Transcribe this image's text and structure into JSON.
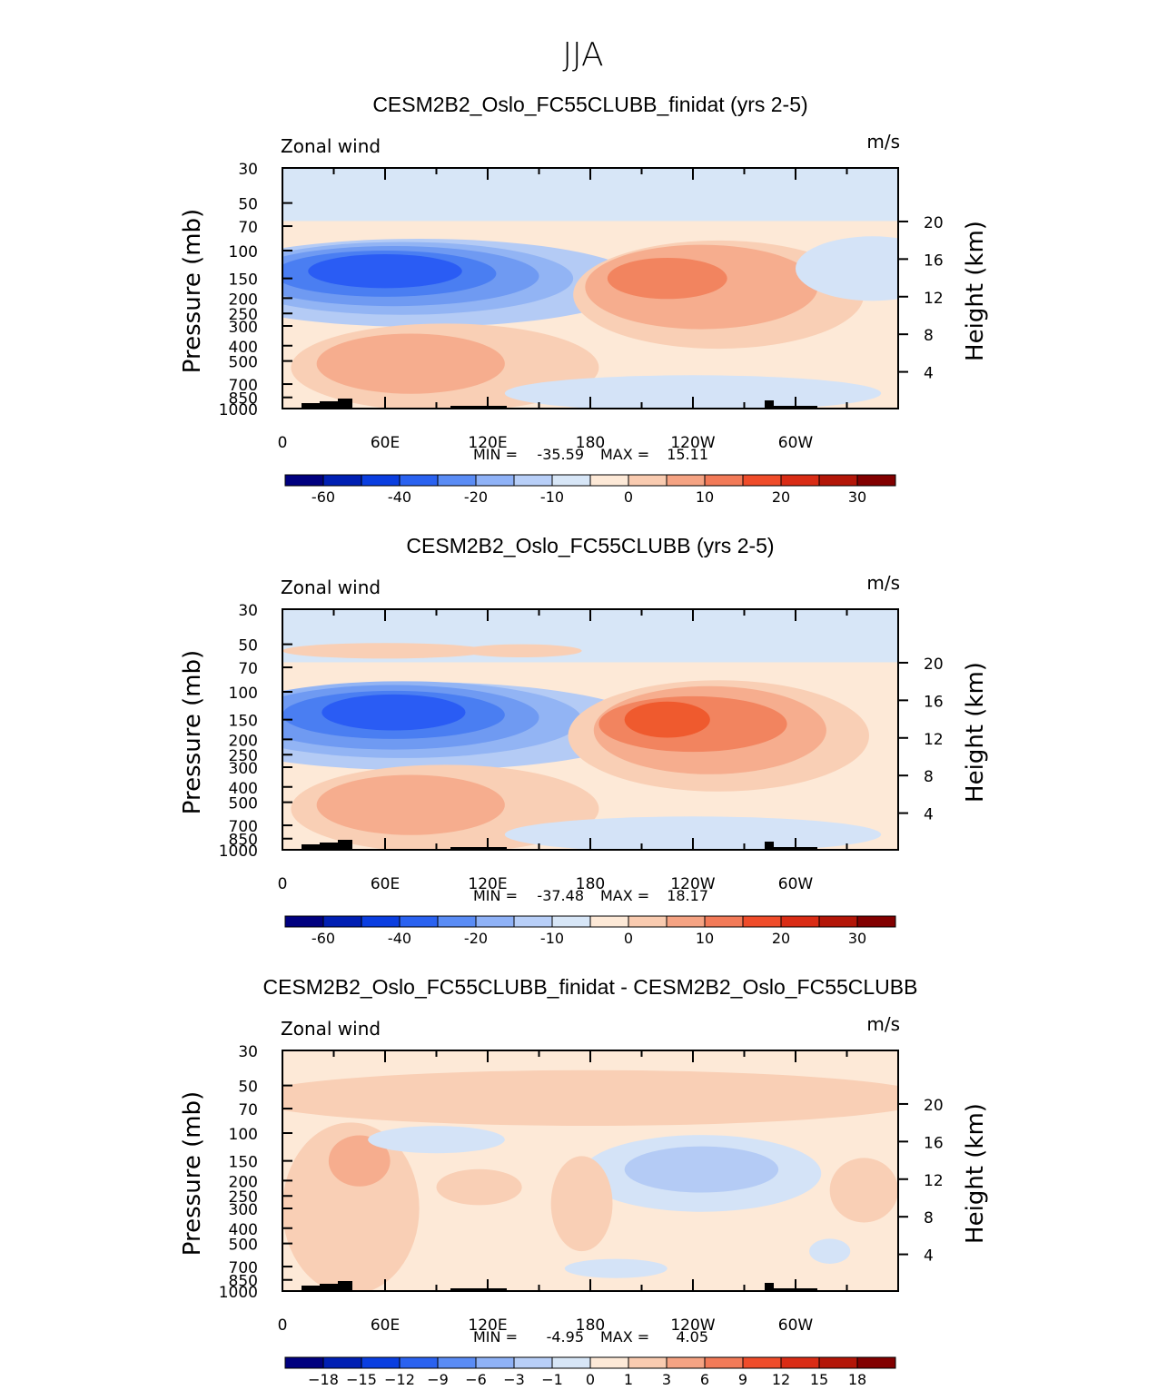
{
  "figure_title": "JJA",
  "chart_data": [
    {
      "type": "heatmap",
      "title": "CESM2B2_Oslo_FC55CLUBB_finidat (yrs 2-5)",
      "left_label": "Zonal wind",
      "right_label": "m/s",
      "ylabel": "Pressure (mb)",
      "ylabel_right": "Height (km)",
      "x_ticks": [
        "0",
        "60E",
        "120E",
        "180",
        "120W",
        "60W"
      ],
      "y_ticks": [
        "30",
        "50",
        "70",
        "100",
        "150",
        "200",
        "250",
        "300",
        "400",
        "500",
        "700",
        "850",
        "1000"
      ],
      "y_ticks_right": [
        "20",
        "16",
        "12",
        "8",
        "4"
      ],
      "stats": {
        "min_label": "MIN =",
        "min": "-35.59",
        "max_label": "MAX =",
        "max": "15.11"
      },
      "colorbar_labels": [
        "-60",
        "-40",
        "-20",
        "-10",
        "0",
        "10",
        "20",
        "30"
      ],
      "colorbar_label_slots": [
        1,
        3,
        5,
        7,
        9,
        11,
        13,
        15
      ],
      "features": [
        {
          "level": -2,
          "lon": 80,
          "p": 160,
          "rx": 130,
          "ry": 1.9
        },
        {
          "level": -3,
          "lon": 70,
          "p": 150,
          "rx": 100,
          "ry": 1.7
        },
        {
          "level": -4,
          "lon": 65,
          "p": 145,
          "rx": 85,
          "ry": 1.55
        },
        {
          "level": -5,
          "lon": 60,
          "p": 140,
          "rx": 65,
          "ry": 1.4
        },
        {
          "level": -6,
          "lon": 60,
          "p": 135,
          "rx": 45,
          "ry": 1.28
        },
        {
          "level": 1,
          "lon": 255,
          "p": 190,
          "rx": 85,
          "ry": 2.2
        },
        {
          "level": 2,
          "lon": 245,
          "p": 170,
          "rx": 68,
          "ry": 1.85
        },
        {
          "level": 3,
          "lon": 225,
          "p": 150,
          "rx": 35,
          "ry": 1.35
        },
        {
          "level": 1,
          "lon": 95,
          "p": 550,
          "rx": 90,
          "ry": 1.9
        },
        {
          "level": 2,
          "lon": 75,
          "p": 520,
          "rx": 55,
          "ry": 1.55
        },
        {
          "level": -1,
          "lon": 240,
          "p": 800,
          "rx": 110,
          "ry": 1.3
        },
        {
          "level": -1,
          "lon": 345,
          "p": 130,
          "rx": 45,
          "ry": 1.6
        }
      ]
    },
    {
      "type": "heatmap",
      "title": "CESM2B2_Oslo_FC55CLUBB (yrs 2-5)",
      "left_label": "Zonal wind",
      "right_label": "m/s",
      "ylabel": "Pressure (mb)",
      "ylabel_right": "Height (km)",
      "x_ticks": [
        "0",
        "60E",
        "120E",
        "180",
        "120W",
        "60W"
      ],
      "y_ticks": [
        "30",
        "50",
        "70",
        "100",
        "150",
        "200",
        "250",
        "300",
        "400",
        "500",
        "700",
        "850",
        "1000"
      ],
      "y_ticks_right": [
        "20",
        "16",
        "12",
        "8",
        "4"
      ],
      "stats": {
        "min_label": "MIN =",
        "min": "-37.48",
        "max_label": "MAX =",
        "max": "18.17"
      },
      "colorbar_labels": [
        "-60",
        "-40",
        "-20",
        "-10",
        "0",
        "10",
        "20",
        "30"
      ],
      "colorbar_label_slots": [
        1,
        3,
        5,
        7,
        9,
        11,
        13,
        15
      ],
      "features": [
        {
          "level": -2,
          "lon": 80,
          "p": 165,
          "rx": 135,
          "ry": 1.9
        },
        {
          "level": -3,
          "lon": 70,
          "p": 150,
          "rx": 105,
          "ry": 1.75
        },
        {
          "level": -4,
          "lon": 65,
          "p": 145,
          "rx": 85,
          "ry": 1.6
        },
        {
          "level": -5,
          "lon": 65,
          "p": 140,
          "rx": 65,
          "ry": 1.42
        },
        {
          "level": -6,
          "lon": 65,
          "p": 135,
          "rx": 42,
          "ry": 1.3
        },
        {
          "level": 1,
          "lon": 255,
          "p": 190,
          "rx": 88,
          "ry": 2.25
        },
        {
          "level": 2,
          "lon": 250,
          "p": 175,
          "rx": 68,
          "ry": 1.9
        },
        {
          "level": 3,
          "lon": 240,
          "p": 160,
          "rx": 55,
          "ry": 1.5
        },
        {
          "level": 4,
          "lon": 225,
          "p": 150,
          "rx": 25,
          "ry": 1.3
        },
        {
          "level": 1,
          "lon": 95,
          "p": 550,
          "rx": 90,
          "ry": 1.9
        },
        {
          "level": 2,
          "lon": 75,
          "p": 520,
          "rx": 55,
          "ry": 1.55
        },
        {
          "level": -1,
          "lon": 240,
          "p": 800,
          "rx": 110,
          "ry": 1.3
        },
        {
          "level": 1,
          "lon": 60,
          "p": 55,
          "rx": 60,
          "ry": 1.12
        },
        {
          "level": 1,
          "lon": 140,
          "p": 55,
          "rx": 35,
          "ry": 1.1
        }
      ]
    },
    {
      "type": "heatmap",
      "title": "CESM2B2_Oslo_FC55CLUBB_finidat - CESM2B2_Oslo_FC55CLUBB",
      "left_label": "Zonal wind",
      "right_label": "m/s",
      "ylabel": "Pressure (mb)",
      "ylabel_right": "Height (km)",
      "x_ticks": [
        "0",
        "60E",
        "120E",
        "180",
        "120W",
        "60W"
      ],
      "y_ticks": [
        "30",
        "50",
        "70",
        "100",
        "150",
        "200",
        "250",
        "300",
        "400",
        "500",
        "700",
        "850",
        "1000"
      ],
      "y_ticks_right": [
        "20",
        "16",
        "12",
        "8",
        "4"
      ],
      "stats": {
        "min_label": "MIN =",
        "min": "-4.95",
        "max_label": "MAX =",
        "max": "4.05"
      },
      "colorbar_labels": [
        "−18",
        "−15",
        "−12",
        "−9",
        "−6",
        "−3",
        "−1",
        "0",
        "1",
        "3",
        "6",
        "9",
        "12",
        "15",
        "18"
      ],
      "colorbar_label_slots": [
        1,
        2,
        3,
        4,
        5,
        6,
        7,
        8,
        9,
        10,
        11,
        12,
        13,
        14,
        15
      ],
      "background_level": 0,
      "features": [
        {
          "level": 1,
          "lon": 180,
          "p": 60,
          "rx": 200,
          "ry": 1.5
        },
        {
          "level": 1,
          "lon": 40,
          "p": 300,
          "rx": 40,
          "ry": 3.5
        },
        {
          "level": 2,
          "lon": 45,
          "p": 150,
          "rx": 18,
          "ry": 1.45
        },
        {
          "level": -1,
          "lon": 245,
          "p": 180,
          "rx": 70,
          "ry": 1.75
        },
        {
          "level": -2,
          "lon": 245,
          "p": 170,
          "rx": 45,
          "ry": 1.4
        },
        {
          "level": -1,
          "lon": 90,
          "p": 110,
          "rx": 40,
          "ry": 1.22
        },
        {
          "level": 1,
          "lon": 175,
          "p": 280,
          "rx": 18,
          "ry": 2.0
        },
        {
          "level": 1,
          "lon": 115,
          "p": 220,
          "rx": 25,
          "ry": 1.3
        },
        {
          "level": 1,
          "lon": 340,
          "p": 230,
          "rx": 20,
          "ry": 1.6
        },
        {
          "level": -1,
          "lon": 320,
          "p": 560,
          "rx": 12,
          "ry": 1.2
        },
        {
          "level": -1,
          "lon": 195,
          "p": 720,
          "rx": 30,
          "ry": 1.15
        }
      ]
    }
  ],
  "colors": {
    "colorbar": [
      "#00007f",
      "#001fb3",
      "#0a3ee0",
      "#2a62f0",
      "#5a8cf5",
      "#8fb2f7",
      "#b8cff8",
      "#d7e6f7",
      "#fde9d7",
      "#f9cbb0",
      "#f5a383",
      "#f27a58",
      "#ef4c2a",
      "#d92c15",
      "#b31608",
      "#820000"
    ],
    "contour_levels": {
      "-6": "#2a5cf4",
      "-5": "#4a7ef2",
      "-4": "#6f9af2",
      "-3": "#92b4f4",
      "-2": "#b4cbf5",
      "-1": "#d4e3f7",
      "0": "#fde9d7",
      "1": "#f9cfb5",
      "2": "#f6ad8e",
      "3": "#f2845f",
      "4": "#ef5a2e"
    },
    "background_default": "#fde9d7",
    "upper_default": "#d7e6f7"
  }
}
